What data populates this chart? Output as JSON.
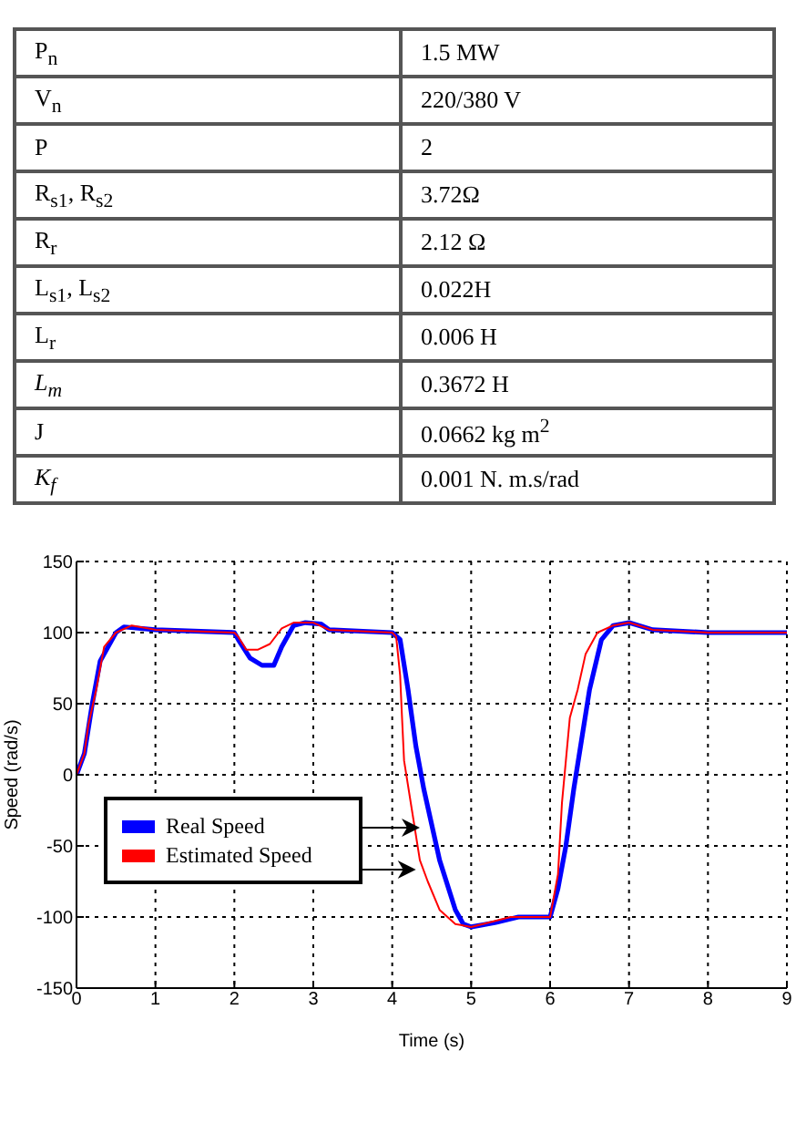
{
  "chart_data": [
    {
      "type": "other",
      "annotations": [
        "P$_{n}$",
        "1.5 MW",
        "V$_{n}$",
        "220/380 V",
        "P",
        "2",
        "R$_{s1}$, R$_{s2}$",
        "3.72Ω",
        "R$_{r}$",
        "2.12 Ω",
        "L$_{s1}$, L$_{s2}$",
        "0.022H",
        "L$_{r}$",
        "0.006 H",
        "L$_{m}$",
        "0.3672 H",
        "J",
        "0.0662 kg m$^{2}$",
        "K$_{f}$",
        "0.001 N. m.s/rad"
      ]
    },
    {
      "type": "line",
      "xlabel": "Time (s)",
      "ylabel": "Speed (rad/s)",
      "xlim": [
        0,
        9
      ],
      "xticks": [
        0,
        1,
        2,
        3,
        4,
        5,
        6,
        7,
        8,
        9
      ],
      "ylim": [
        -150,
        150
      ],
      "yticks": [
        -150,
        -100,
        -50,
        0,
        50,
        100,
        150
      ],
      "grid": true,
      "legend": "left",
      "marker": "none",
      "line_style": "solid",
      "series": [
        {
          "name": "Real Speed",
          "color": "#0000ff",
          "x": [
            0,
            0.1,
            0.2,
            0.3,
            0.5,
            0.6,
            1,
            2,
            2.05,
            2.2,
            2.35,
            2.5,
            2.6,
            2.75,
            2.9,
            3.1,
            3.2,
            4,
            4.1,
            4.2,
            4.3,
            4.4,
            4.6,
            4.8,
            4.9,
            5,
            5.3,
            5.6,
            6,
            6.1,
            6.2,
            6.3,
            6.4,
            6.5,
            6.65,
            6.8,
            7,
            7.3,
            8,
            9
          ],
          "values": [
            0,
            15,
            50,
            80,
            100,
            104,
            102,
            100,
            95,
            82,
            77,
            77,
            90,
            105,
            107,
            106,
            102,
            100,
            95,
            60,
            20,
            -10,
            -60,
            -95,
            -105,
            -107,
            -104,
            -100,
            -100,
            -80,
            -50,
            -10,
            25,
            60,
            95,
            105,
            107,
            102,
            100,
            100
          ]
        },
        {
          "name": "Estimated Speed",
          "color": "#ff0000",
          "x": [
            0,
            0.1,
            0.15,
            0.25,
            0.35,
            0.5,
            0.7,
            1,
            2,
            2.05,
            2.15,
            2.3,
            2.45,
            2.6,
            2.75,
            3,
            3.2,
            4,
            4.05,
            4.1,
            4.12,
            4.15,
            4.25,
            4.35,
            4.45,
            4.6,
            4.8,
            5,
            5.5,
            6,
            6.1,
            6.15,
            6.2,
            6.25,
            6.35,
            6.45,
            6.6,
            6.8,
            7,
            7.3,
            8,
            9
          ],
          "values": [
            0,
            15,
            35,
            60,
            90,
            100,
            105,
            102,
            100,
            97,
            88,
            88,
            92,
            103,
            107,
            107,
            102,
            100,
            97,
            70,
            45,
            10,
            -25,
            -60,
            -75,
            -95,
            -105,
            -107,
            -100,
            -100,
            -70,
            -20,
            10,
            40,
            60,
            85,
            100,
            105,
            107,
            102,
            100,
            100
          ]
        }
      ]
    }
  ]
}
